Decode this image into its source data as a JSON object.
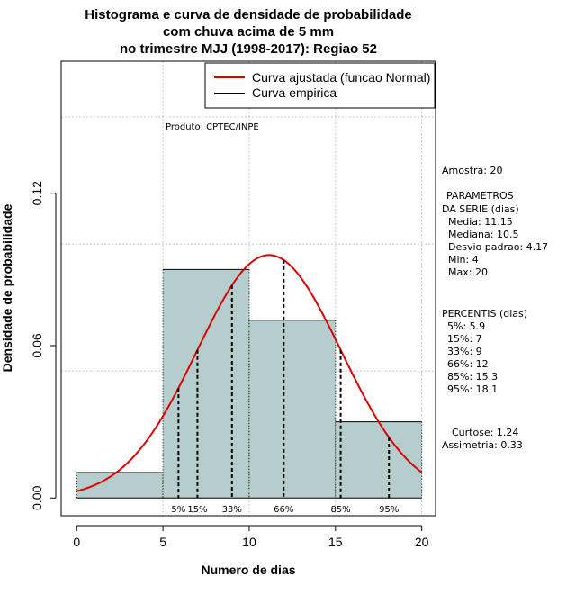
{
  "chart_data": {
    "type": "bar",
    "title_lines": [
      "Histograma e curva de densidade de probabilidade",
      "com chuva acima de 5 mm",
      "no trimestre MJJ (1998-2017): Regiao 52"
    ],
    "xlabel": "Numero de dias",
    "ylabel": "Densidade de probabilidade",
    "xlim": [
      -0.9,
      20.8
    ],
    "ylim": [
      -0.007,
      0.172
    ],
    "x_ticks": [
      "0",
      "5",
      "10",
      "15",
      "20"
    ],
    "x_tick_values": [
      0,
      5,
      10,
      15,
      20
    ],
    "y_ticks": [
      "0.00",
      "0.06",
      "0.12"
    ],
    "y_tick_values": [
      0.0,
      0.06,
      0.12
    ],
    "grid": true,
    "grid_x": [
      5,
      10,
      15,
      20
    ],
    "grid_y": [
      0.05,
      0.1,
      0.15
    ],
    "legend_placement": "top-right",
    "bins": [
      {
        "x0": 0,
        "x1": 5,
        "density": 0.01
      },
      {
        "x0": 5,
        "x1": 10,
        "density": 0.09
      },
      {
        "x0": 10,
        "x1": 15,
        "density": 0.07
      },
      {
        "x0": 15,
        "x1": 20,
        "density": 0.03
      }
    ],
    "bar_color": "#b5cdcd",
    "series": [
      {
        "name": "Curva ajustada (funcao Normal)",
        "color": "#dd0000",
        "kind": "normal",
        "mean": 11.15,
        "sd": 4.17
      },
      {
        "name": "Curva empirica",
        "color": "#000000",
        "kind": "empirical"
      }
    ],
    "percentiles": [
      {
        "label": "5%",
        "value": 5.9
      },
      {
        "label": "15%",
        "value": 7
      },
      {
        "label": "33%",
        "value": 9
      },
      {
        "label": "66%",
        "value": 12
      },
      {
        "label": "85%",
        "value": 15.3
      },
      {
        "label": "95%",
        "value": 18.1
      }
    ],
    "credit": "Produto: CPTEC/INPE"
  },
  "stats": {
    "amostra": "Amostra: 20",
    "param_title_1": "PARAMETROS",
    "param_title_2": "DA SERIE (dias)",
    "media": "Media: 11.15",
    "mediana": "Mediana: 10.5",
    "desvio": "Desvio padrao: 4.17",
    "min": "Min: 4",
    "max": "Max: 20",
    "percentis_title": "PERCENTIS (dias)",
    "p5": "5%: 5.9",
    "p15": "15%: 7",
    "p33": "33%: 9",
    "p66": "66%: 12",
    "p85": "85%: 15.3",
    "p95": "95%: 18.1",
    "curtose": "Curtose: 1.24",
    "assimetria": "Assimetria: 0.33"
  }
}
